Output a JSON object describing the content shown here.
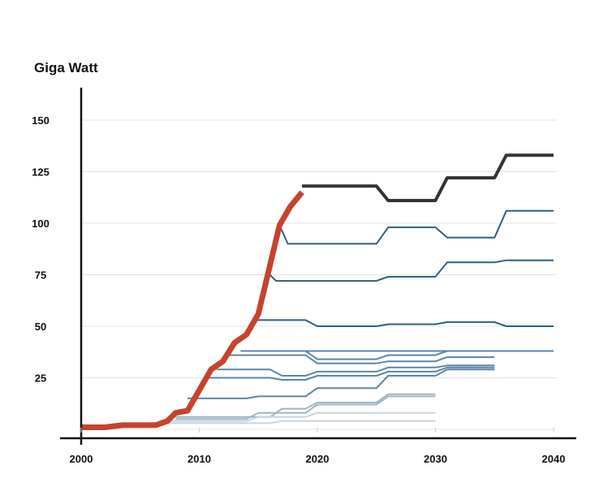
{
  "chart_data": {
    "type": "line",
    "title": "",
    "ylabel": "Giga Watt",
    "xlabel": "",
    "xlim": [
      2000,
      2040
    ],
    "ylim": [
      0,
      160
    ],
    "x_ticks": [
      2000,
      2010,
      2020,
      2030,
      2040
    ],
    "y_ticks": [
      25,
      50,
      75,
      100,
      125,
      150
    ],
    "grid": "horizontal",
    "legend": "none",
    "colors": {
      "actual": "#c6432e",
      "latest_forecast": "#333333",
      "forecast_dark": "#2f5f80",
      "forecast_mid": "#5d84a5",
      "forecast_light": "#9fb5c8",
      "forecast_faint": "#c9d4de",
      "grid": "#e4e4e4",
      "axis": "#111111"
    },
    "series": [
      {
        "role": "actual",
        "color": "actual",
        "width": 7,
        "x": [
          2000,
          2002,
          2003.5,
          2005,
          2006.3,
          2007.3,
          2008,
          2009,
          2011,
          2012,
          2013,
          2014,
          2015,
          2015.8,
          2016.8,
          2017.7,
          2018.7
        ],
        "y": [
          1,
          1,
          2,
          2,
          2,
          4,
          8,
          9,
          29,
          33,
          42,
          46,
          56,
          75,
          99,
          108,
          115
        ]
      },
      {
        "role": "latest_forecast",
        "color": "latest_forecast",
        "width": 4,
        "x": [
          2018.7,
          2025,
          2026,
          2030,
          2031,
          2035,
          2036,
          2040
        ],
        "y": [
          118,
          118,
          111,
          111,
          122,
          122,
          133,
          133
        ]
      },
      {
        "role": "forecast",
        "color": "forecast_dark",
        "width": 2,
        "x": [
          2016.8,
          2017.5,
          2025,
          2026,
          2030,
          2031,
          2035,
          2036,
          2040
        ],
        "y": [
          99,
          90,
          90,
          98,
          98,
          93,
          93,
          106,
          106
        ]
      },
      {
        "role": "forecast",
        "color": "forecast_dark",
        "width": 2,
        "x": [
          2015.8,
          2016.5,
          2025,
          2026,
          2030,
          2031,
          2035,
          2036,
          2040
        ],
        "y": [
          76,
          72,
          72,
          74,
          74,
          81,
          81,
          82,
          82
        ]
      },
      {
        "role": "forecast",
        "color": "forecast_dark",
        "width": 2,
        "x": [
          2014.8,
          2019,
          2020,
          2025,
          2026,
          2030,
          2031,
          2035,
          2036,
          2040
        ],
        "y": [
          53,
          53,
          50,
          50,
          51,
          51,
          52,
          52,
          50,
          50
        ]
      },
      {
        "role": "forecast",
        "color": "forecast_mid",
        "width": 2,
        "x": [
          2013.7,
          2020,
          2031,
          2040
        ],
        "y": [
          38,
          38,
          38,
          38
        ]
      },
      {
        "role": "forecast",
        "color": "forecast_mid",
        "width": 2,
        "x": [
          2013.5,
          2019,
          2020,
          2025,
          2026,
          2030,
          2031,
          2035
        ],
        "y": [
          38,
          38,
          34,
          34,
          36,
          36,
          38,
          38
        ]
      },
      {
        "role": "forecast",
        "color": "forecast_mid",
        "width": 2,
        "x": [
          2012.5,
          2019,
          2020,
          2025,
          2026,
          2030,
          2031,
          2035
        ],
        "y": [
          36,
          36,
          32,
          32,
          33,
          33,
          35,
          35
        ]
      },
      {
        "role": "forecast",
        "color": "forecast_mid",
        "width": 2,
        "x": [
          2011.5,
          2016,
          2017,
          2019,
          2020,
          2025,
          2026,
          2030,
          2031,
          2035
        ],
        "y": [
          29,
          29,
          26,
          26,
          28,
          28,
          30,
          30,
          31,
          31
        ]
      },
      {
        "role": "forecast",
        "color": "forecast_mid",
        "width": 2,
        "x": [
          2010.5,
          2016,
          2017,
          2019,
          2020,
          2025,
          2026,
          2030,
          2031,
          2035
        ],
        "y": [
          25,
          25,
          24,
          24,
          26,
          26,
          28,
          28,
          30,
          30
        ]
      },
      {
        "role": "forecast",
        "color": "forecast_mid",
        "width": 2,
        "x": [
          2009,
          2014,
          2015,
          2019,
          2020,
          2025,
          2026,
          2030,
          2031,
          2035
        ],
        "y": [
          15,
          15,
          16,
          16,
          20,
          20,
          26,
          26,
          29,
          29
        ]
      },
      {
        "role": "forecast",
        "color": "forecast_light",
        "width": 2,
        "x": [
          2008,
          2016,
          2017,
          2019,
          2020,
          2025,
          2026,
          2030
        ],
        "y": [
          6,
          6,
          10,
          10,
          13,
          13,
          17,
          17
        ]
      },
      {
        "role": "forecast",
        "color": "forecast_light",
        "width": 2,
        "x": [
          2008,
          2014,
          2015,
          2019,
          2020,
          2025,
          2026,
          2030
        ],
        "y": [
          5,
          5,
          8,
          8,
          12,
          12,
          16,
          16
        ]
      },
      {
        "role": "forecast",
        "color": "forecast_faint",
        "width": 2,
        "x": [
          2007.5,
          2014,
          2015,
          2019,
          2020,
          2030
        ],
        "y": [
          4,
          4,
          6,
          6,
          8,
          8
        ]
      },
      {
        "role": "forecast",
        "color": "forecast_faint",
        "width": 2,
        "x": [
          2007,
          2016,
          2017,
          2030
        ],
        "y": [
          3,
          3,
          4,
          4
        ]
      }
    ]
  }
}
